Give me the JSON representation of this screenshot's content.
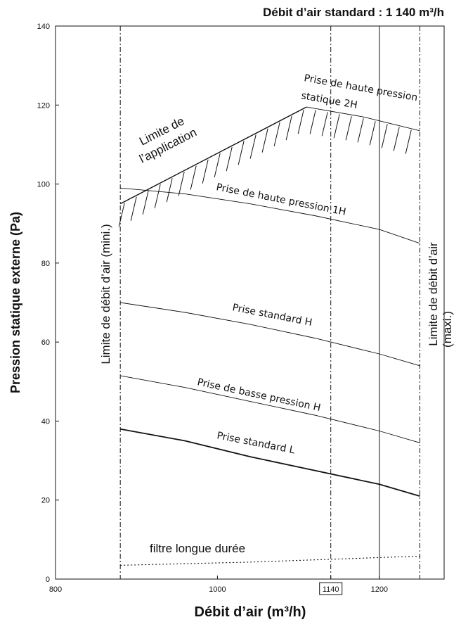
{
  "chart_data": {
    "type": "line",
    "title": "Débit d’air standard : 1 140 m³/h",
    "xlabel": "Débit d’air (m³/h)",
    "ylabel": "Pression statique externe (Pa)",
    "xlim": [
      800,
      1280
    ],
    "ylim": [
      0,
      140
    ],
    "x_ticks": [
      {
        "value": 800,
        "label": "800"
      },
      {
        "value": 1000,
        "label": "1000"
      },
      {
        "value": 1140,
        "label": "1140",
        "boxed": true
      },
      {
        "value": 1200,
        "label": "1200"
      }
    ],
    "y_ticks": [
      0,
      20,
      40,
      60,
      80,
      100,
      120,
      140
    ],
    "grid": false,
    "series": [
      {
        "name": "Prise standard L",
        "line_style": "solid-thick",
        "points": [
          [
            880,
            38
          ],
          [
            960,
            35
          ],
          [
            1040,
            31
          ],
          [
            1120,
            27.5
          ],
          [
            1200,
            24
          ],
          [
            1250,
            21
          ]
        ]
      },
      {
        "name": "Prise de basse pression H",
        "line_style": "solid",
        "points": [
          [
            880,
            51.5
          ],
          [
            960,
            48.5
          ],
          [
            1040,
            45
          ],
          [
            1120,
            41.5
          ],
          [
            1200,
            37.5
          ],
          [
            1250,
            34.5
          ]
        ]
      },
      {
        "name": "Prise standard H",
        "line_style": "solid",
        "points": [
          [
            880,
            70
          ],
          [
            960,
            67.5
          ],
          [
            1040,
            64.5
          ],
          [
            1120,
            61
          ],
          [
            1200,
            57
          ],
          [
            1250,
            54
          ]
        ]
      },
      {
        "name": "Prise de haute pression 1H",
        "line_style": "solid",
        "points": [
          [
            880,
            99
          ],
          [
            960,
            97.5
          ],
          [
            1040,
            95
          ],
          [
            1120,
            92
          ],
          [
            1200,
            88.5
          ],
          [
            1250,
            85
          ]
        ]
      },
      {
        "name": "Prise de haute pression statique 2H",
        "line_style": "solid",
        "points": [
          [
            1110,
            119.5
          ],
          [
            1180,
            117
          ],
          [
            1250,
            113.5
          ]
        ]
      },
      {
        "name": "Limite de l’application",
        "line_style": "solid-hatched",
        "points": [
          [
            880,
            95
          ],
          [
            1110,
            119.5
          ]
        ]
      },
      {
        "name": "filtre longue durée",
        "line_style": "dotted",
        "points": [
          [
            880,
            3.5
          ],
          [
            1040,
            4.3
          ],
          [
            1250,
            5.8
          ]
        ]
      }
    ],
    "vertical_lines": [
      {
        "x": 880,
        "style": "dash-dot",
        "label": "Limite de débit d’air (mini.)"
      },
      {
        "x": 1140,
        "style": "dash-dot"
      },
      {
        "x": 1200,
        "style": "solid"
      },
      {
        "x": 1250,
        "style": "dash-dot",
        "label": "Limite de débit d’air (maxi.)"
      }
    ],
    "labels": {
      "app_limit_line1": "Limite de",
      "app_limit_line2": "l’application",
      "min_limit": "Limite de débit d’air (mini.)",
      "max_limit_line1": "Limite de débit d’air",
      "max_limit_line2": "(maxi.)",
      "curve_2h_line1": "Prise de haute pression",
      "curve_2h_line2": "statique 2H",
      "curve_1h": "Prise de haute pression 1H",
      "curve_std_h": "Prise standard H",
      "curve_low_h": "Prise de basse pression H",
      "curve_std_l": "Prise standard L",
      "curve_filter": "filtre longue durée"
    }
  }
}
